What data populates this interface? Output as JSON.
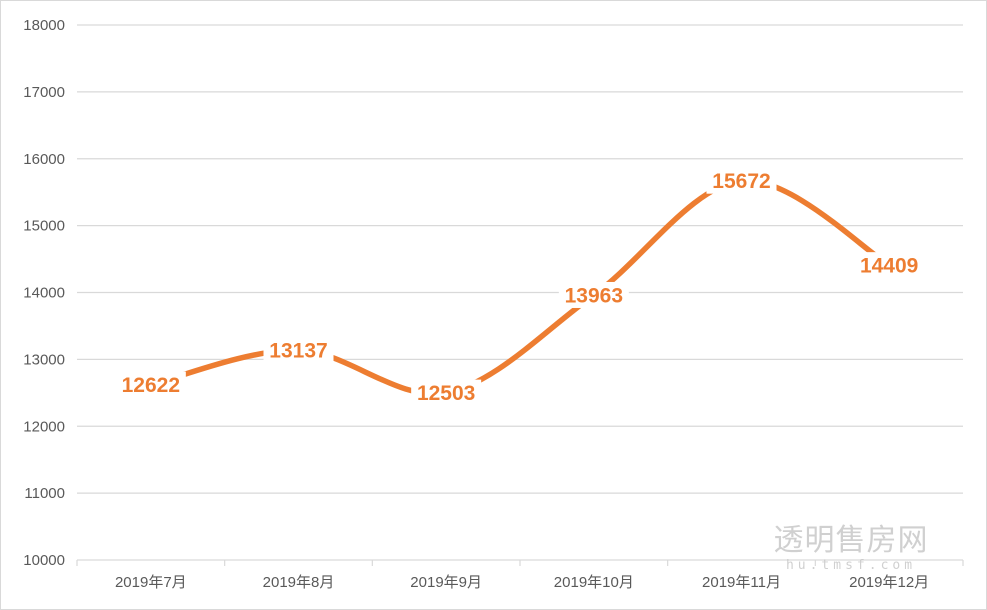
{
  "chart_data": {
    "type": "line",
    "smooth": true,
    "title": "",
    "xlabel": "",
    "ylabel": "",
    "categories": [
      "2019年7月",
      "2019年8月",
      "2019年9月",
      "2019年10月",
      "2019年11月",
      "2019年12月"
    ],
    "series": [
      {
        "values": [
          12622,
          13137,
          12503,
          13963,
          15672,
          14409
        ],
        "color": "#ed7d31"
      }
    ],
    "ylim": [
      10000,
      18000
    ],
    "yticks": [
      "10000",
      "11000",
      "12000",
      "13000",
      "14000",
      "15000",
      "16000",
      "17000",
      "18000"
    ],
    "grid": true,
    "legend": "none",
    "data_labels": [
      "12622",
      "13137",
      "12503",
      "13963",
      "15672",
      "14409"
    ]
  },
  "watermark": {
    "name": "透明售房网",
    "domain": "hu.tmsf.com"
  },
  "colors": {
    "line": "#ed7d31",
    "grid": "#d9d9d9",
    "axis_text": "#595959",
    "watermark": "#c8c8c8"
  }
}
